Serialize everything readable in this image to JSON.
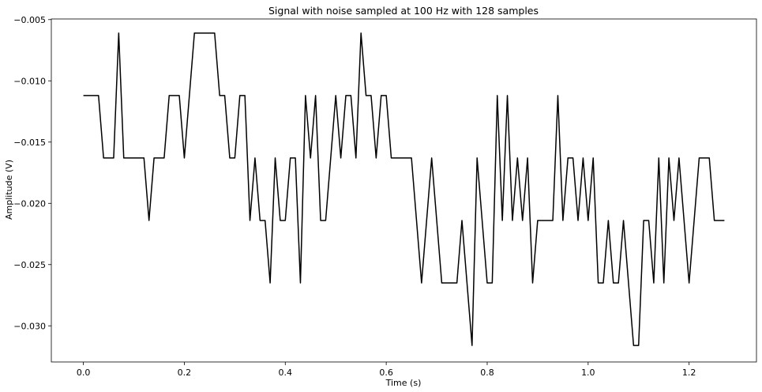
{
  "chart_data": {
    "type": "line",
    "title": "Signal with noise sampled at 100 Hz with 128 samples",
    "xlabel": "Time (s)",
    "ylabel": "Amplitude (V)",
    "xlim": [
      -0.0635,
      1.3335
    ],
    "ylim": [
      -0.03295,
      -0.00495
    ],
    "xticks": [
      0.0,
      0.2,
      0.4,
      0.6,
      0.8,
      1.0,
      1.2
    ],
    "xtick_labels": [
      "0.0",
      "0.2",
      "0.4",
      "0.6",
      "0.8",
      "1.0",
      "1.2"
    ],
    "yticks": [
      -0.005,
      -0.01,
      -0.015,
      -0.02,
      -0.025,
      -0.03
    ],
    "ytick_labels": [
      "−0.005",
      "−0.010",
      "−0.015",
      "−0.020",
      "−0.025",
      "−0.030"
    ],
    "grid": false,
    "line_color": "#000000",
    "series": [
      {
        "x_start": 0.0,
        "x_step": 0.01,
        "values": [
          -0.0112,
          -0.0112,
          -0.0112,
          -0.0112,
          -0.0163,
          -0.0163,
          -0.0163,
          -0.0061,
          -0.0163,
          -0.0163,
          -0.0163,
          -0.0163,
          -0.0163,
          -0.0214,
          -0.0163,
          -0.0163,
          -0.0163,
          -0.0112,
          -0.0112,
          -0.0112,
          -0.0163,
          -0.0112,
          -0.0061,
          -0.0061,
          -0.0061,
          -0.0061,
          -0.0061,
          -0.0112,
          -0.0112,
          -0.0163,
          -0.0163,
          -0.0112,
          -0.0112,
          -0.0214,
          -0.0163,
          -0.0214,
          -0.0214,
          -0.0265,
          -0.0163,
          -0.0214,
          -0.0214,
          -0.0163,
          -0.0163,
          -0.0265,
          -0.0112,
          -0.0163,
          -0.0112,
          -0.0214,
          -0.0214,
          -0.0163,
          -0.0112,
          -0.0163,
          -0.0112,
          -0.0112,
          -0.0163,
          -0.0061,
          -0.0112,
          -0.0112,
          -0.0163,
          -0.0112,
          -0.0112,
          -0.0163,
          -0.0163,
          -0.0163,
          -0.0163,
          -0.0163,
          -0.0214,
          -0.0265,
          -0.0214,
          -0.0163,
          -0.0214,
          -0.0265,
          -0.0265,
          -0.0265,
          -0.0265,
          -0.0214,
          -0.0265,
          -0.0316,
          -0.0163,
          -0.0214,
          -0.0265,
          -0.0265,
          -0.0112,
          -0.0214,
          -0.0112,
          -0.0214,
          -0.0163,
          -0.0214,
          -0.0163,
          -0.0265,
          -0.0214,
          -0.0214,
          -0.0214,
          -0.0214,
          -0.0112,
          -0.0214,
          -0.0163,
          -0.0163,
          -0.0214,
          -0.0163,
          -0.0214,
          -0.0163,
          -0.0265,
          -0.0265,
          -0.0214,
          -0.0265,
          -0.0265,
          -0.0214,
          -0.0265,
          -0.0316,
          -0.0316,
          -0.0214,
          -0.0214,
          -0.0265,
          -0.0163,
          -0.0265,
          -0.0163,
          -0.0214,
          -0.0163,
          -0.0214,
          -0.0265,
          -0.0214,
          -0.0163,
          -0.0163,
          -0.0163,
          -0.0214,
          -0.0214,
          -0.0214
        ]
      }
    ]
  }
}
